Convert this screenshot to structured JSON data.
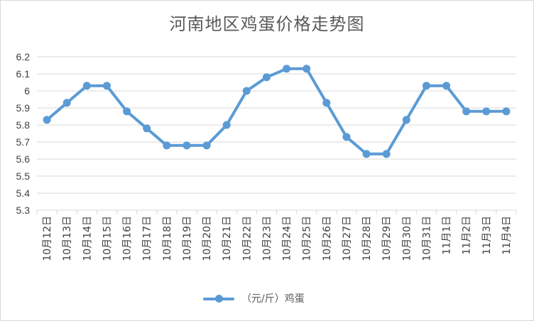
{
  "chart_data": {
    "type": "line",
    "title": "河南地区鸡蛋价格走势图",
    "categories": [
      "10月12日",
      "10月13日",
      "10月14日",
      "10月15日",
      "10月16日",
      "10月17日",
      "10月18日",
      "10月19日",
      "10月20日",
      "10月21日",
      "10月22日",
      "10月23日",
      "10月24日",
      "10月25日",
      "10月26日",
      "10月27日",
      "10月28日",
      "10月29日",
      "10月30日",
      "10月31日",
      "11月1日",
      "11月2日",
      "11月3日",
      "11月4日"
    ],
    "series": [
      {
        "name": "（元/斤）鸡蛋",
        "values": [
          5.83,
          5.93,
          6.03,
          6.03,
          5.88,
          5.78,
          5.68,
          5.68,
          5.68,
          5.8,
          6.0,
          6.08,
          6.13,
          6.13,
          5.93,
          5.73,
          5.63,
          5.63,
          5.83,
          6.03,
          6.03,
          5.88,
          5.88,
          5.88
        ]
      }
    ],
    "yticks": [
      "5.3",
      "5.4",
      "5.5",
      "5.6",
      "5.7",
      "5.8",
      "5.9",
      "6",
      "6.1",
      "6.2"
    ],
    "ylim": [
      5.3,
      6.2
    ],
    "grid": true,
    "legend": "bottom",
    "colors": {
      "series": "#5b9bd5",
      "grid": "#d9d9d9",
      "axis_text": "#404040"
    }
  }
}
